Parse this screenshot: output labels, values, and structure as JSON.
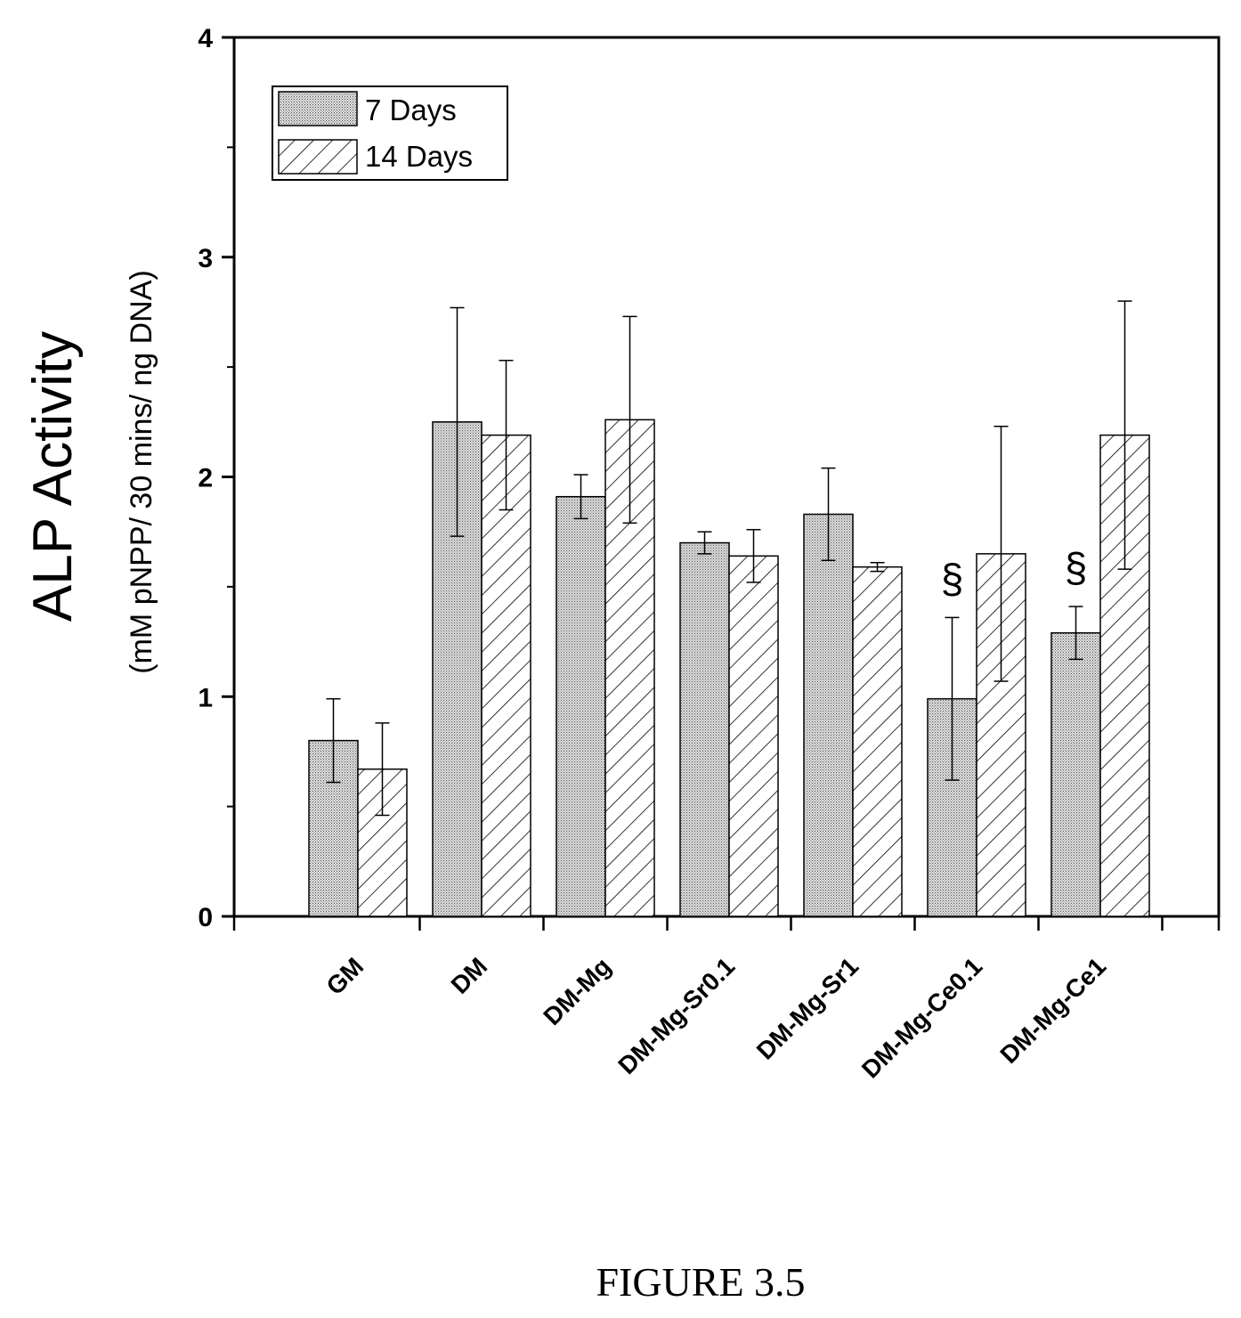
{
  "chart_data": {
    "type": "bar",
    "ylabel": "ALP Activity",
    "ylabel_sub": "(mM pNPP/ 30 mins/ ng DNA)",
    "ylim": [
      0,
      4
    ],
    "yticks": [
      "0",
      "1",
      "2",
      "3",
      "4"
    ],
    "categories": [
      "GM",
      "DM",
      "DM-Mg",
      "DM-Mg-Sr0.1",
      "DM-Mg-Sr1",
      "DM-Mg-Ce0.1",
      "DM-Mg-Ce1"
    ],
    "series": [
      {
        "name": "7 Days",
        "fill": "dotted",
        "values": [
          0.8,
          2.25,
          1.91,
          1.7,
          1.83,
          0.99,
          1.29
        ],
        "errors": [
          0.19,
          0.52,
          0.1,
          0.05,
          0.21,
          0.37,
          0.12
        ]
      },
      {
        "name": "14 Days",
        "fill": "hatched",
        "values": [
          0.67,
          2.19,
          2.26,
          1.64,
          1.59,
          1.65,
          2.19
        ],
        "errors": [
          0.21,
          0.34,
          0.47,
          0.12,
          0.02,
          0.58,
          0.61
        ]
      }
    ],
    "annotations": [
      {
        "category": "DM-Mg-Ce0.1",
        "text": "§"
      },
      {
        "category": "DM-Mg-Ce1",
        "text": "§"
      }
    ],
    "legend_position": "top-left",
    "grid": false
  },
  "caption": "FIGURE 3.5"
}
